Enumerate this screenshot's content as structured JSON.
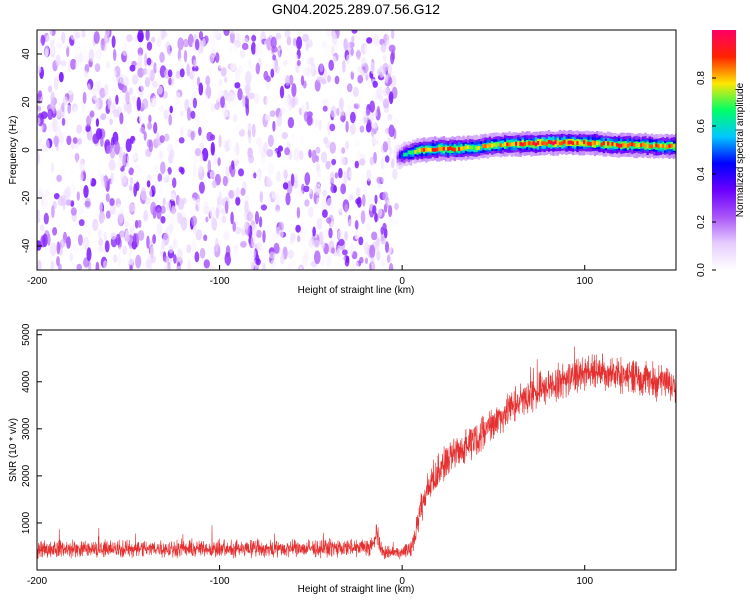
{
  "title": "GN04.2025.289.07.56.G12",
  "colorbar_stops": [
    "#ffffff",
    "#e6ccff",
    "#a855f7",
    "#6a00ff",
    "#0000ff",
    "#00c8ff",
    "#00ff66",
    "#ffe600",
    "#ff2200",
    "#ff0066"
  ],
  "series_color": "#e53030",
  "chart_data": [
    {
      "type": "heatmap",
      "name": "spectrogram",
      "xlabel": "Height of straight line (km)",
      "ylabel": "Frequency (Hz)",
      "xlim": [
        -200,
        150
      ],
      "ylim": [
        -50,
        50
      ],
      "x_ticks": [
        "-200",
        "-100",
        "0",
        "100"
      ],
      "x_tick_values": [
        -200,
        -100,
        0,
        100
      ],
      "y_ticks": [
        "40",
        "20",
        "0",
        "-20",
        "-40"
      ],
      "y_tick_values": [
        40,
        20,
        0,
        -20,
        -40
      ],
      "noise_region_km": [
        -200,
        -3
      ],
      "signal_ridge": {
        "description_values": "frequency ridge near 0 Hz for heights above 0 km",
        "x_km": [
          -3,
          0,
          10,
          20,
          30,
          40,
          50,
          60,
          70,
          80,
          90,
          100,
          110,
          120,
          130,
          140,
          150
        ],
        "freq_hz": [
          -3,
          -2,
          0,
          0.5,
          0.5,
          1,
          2,
          2.5,
          2.5,
          3,
          3,
          3,
          2.5,
          2,
          2,
          1.5,
          1.5
        ],
        "amplitude": [
          0.3,
          0.6,
          0.85,
          0.9,
          0.9,
          0.8,
          0.85,
          0.9,
          0.95,
          0.95,
          0.95,
          0.9,
          0.9,
          0.9,
          0.85,
          0.9,
          0.9
        ]
      },
      "colorbar": {
        "label": "Normalized spectral amplitude",
        "range": [
          0,
          1
        ],
        "ticks": [
          "0.0",
          "0.2",
          "0.4",
          "0.6",
          "0.8"
        ],
        "tick_values": [
          0.0,
          0.2,
          0.4,
          0.6,
          0.8
        ]
      }
    },
    {
      "type": "line",
      "name": "snr",
      "xlabel": "Height of straight line (km)",
      "ylabel": "SNR (10 * v/v)",
      "xlim": [
        -200,
        150
      ],
      "ylim": [
        0,
        5100
      ],
      "x_ticks": [
        "-200",
        "-100",
        "0",
        "100"
      ],
      "x_tick_values": [
        -200,
        -100,
        0,
        100
      ],
      "y_ticks": [
        "5000",
        "4000",
        "3000",
        "2000",
        "1000"
      ],
      "y_tick_values": [
        5000,
        4000,
        3000,
        2000,
        1000
      ],
      "series": [
        {
          "name": "SNR",
          "x": [
            -200,
            -150,
            -100,
            -50,
            -20,
            -15,
            -14,
            -12,
            -10,
            -5,
            0,
            5,
            8,
            10,
            15,
            20,
            30,
            40,
            50,
            60,
            70,
            80,
            90,
            100,
            110,
            120,
            130,
            140,
            150
          ],
          "y": [
            450,
            450,
            450,
            450,
            480,
            550,
            900,
            450,
            380,
            380,
            380,
            450,
            900,
            1300,
            1800,
            2100,
            2500,
            2800,
            3150,
            3450,
            3700,
            3900,
            4050,
            4200,
            4250,
            4150,
            4100,
            4000,
            3950
          ],
          "noise_amplitude": [
            200,
            200,
            200,
            200,
            200,
            250,
            300,
            200,
            150,
            150,
            150,
            200,
            300,
            350,
            400,
            400,
            400,
            400,
            400,
            400,
            400,
            400,
            400,
            400,
            400,
            400,
            400,
            400,
            400
          ]
        }
      ]
    }
  ]
}
